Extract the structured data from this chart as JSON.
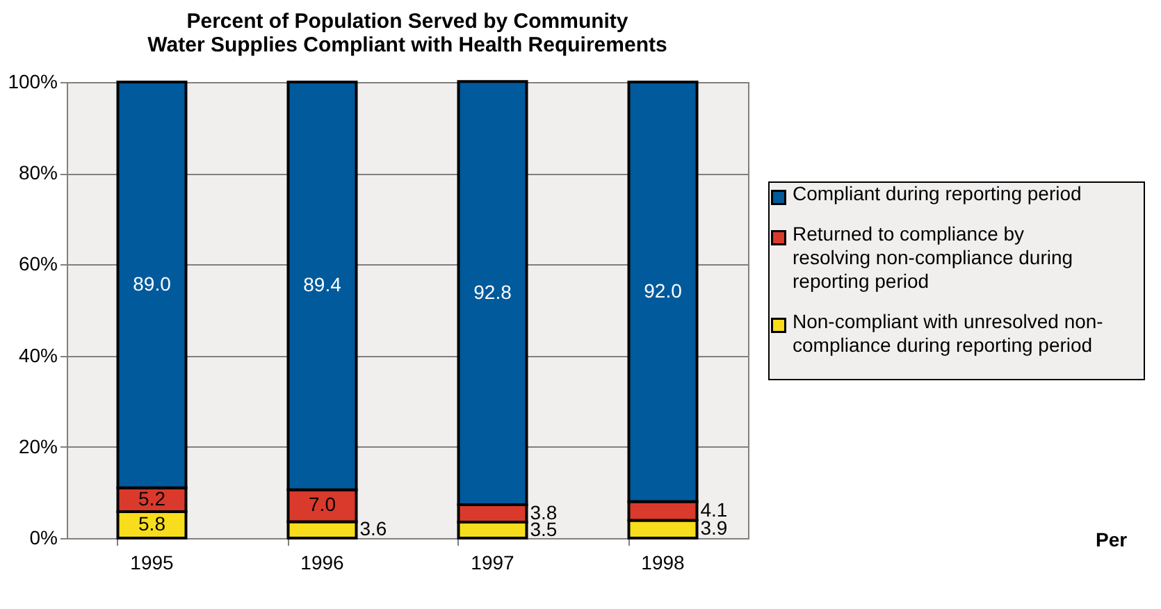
{
  "chart_data": {
    "type": "bar",
    "stacked": true,
    "title": [
      "Percent of Population Served by Community",
      "Water Supplies Compliant with Health Requirements"
    ],
    "categories": [
      "1995",
      "1996",
      "1997",
      "1998"
    ],
    "series": [
      {
        "name": "Non-compliant with unresolved non-compliance during reporting period",
        "color": "#f7dd1c",
        "values": [
          5.8,
          3.6,
          3.5,
          3.9
        ],
        "value_labels": [
          "5.8",
          "3.6",
          "3.5",
          "3.9"
        ]
      },
      {
        "name": "Returned to compliance by resolving non-compliance during reporting period",
        "color": "#da3a2c",
        "values": [
          5.2,
          7.0,
          3.8,
          4.1
        ],
        "value_labels": [
          "5.2",
          "7.0",
          "3.8",
          "4.1"
        ]
      },
      {
        "name": "Compliant during reporting period",
        "color": "#005a9c",
        "values": [
          89.0,
          89.4,
          92.8,
          92.0
        ],
        "value_labels": [
          "89.0",
          "89.4",
          "92.8",
          "92.0"
        ]
      }
    ],
    "ylim": [
      0,
      100
    ],
    "yticks": [
      {
        "value": 0,
        "label": "0%"
      },
      {
        "value": 20,
        "label": "20%"
      },
      {
        "value": 40,
        "label": "40%"
      },
      {
        "value": 60,
        "label": "60%"
      },
      {
        "value": 80,
        "label": "80%"
      },
      {
        "value": 100,
        "label": "100%"
      }
    ],
    "grid": true,
    "legend": "right",
    "annotations": [
      "Per"
    ]
  }
}
